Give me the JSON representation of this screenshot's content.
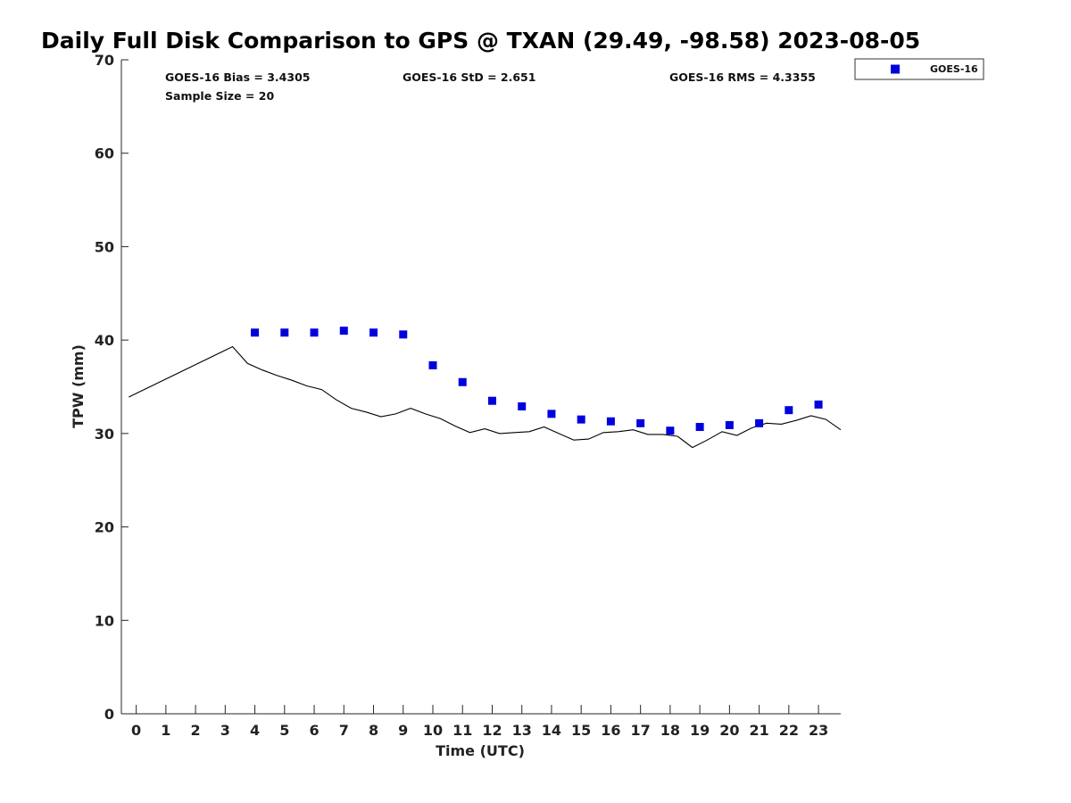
{
  "chart_data": {
    "type": "scatter",
    "title": "Daily Full Disk Comparison to GPS @ TXAN (29.49, -98.58) 2023-08-05",
    "xlabel": "Time (UTC)",
    "ylabel": "TPW (mm)",
    "xlim": [
      -0.5,
      23.75
    ],
    "ylim": [
      0,
      70
    ],
    "x_ticks": [
      0,
      1,
      2,
      3,
      4,
      5,
      6,
      7,
      8,
      9,
      10,
      11,
      12,
      13,
      14,
      15,
      16,
      17,
      18,
      19,
      20,
      21,
      22,
      23
    ],
    "x_tick_labels": [
      "0",
      "1",
      "2",
      "3",
      "4",
      "5",
      "6",
      "7",
      "8",
      "9",
      "10",
      "11",
      "12",
      "13",
      "14",
      "15",
      "16",
      "17",
      "18",
      "19",
      "20",
      "21",
      "22",
      "23"
    ],
    "y_ticks": [
      0,
      10,
      20,
      30,
      40,
      50,
      60,
      70
    ],
    "y_tick_labels": [
      "0",
      "10",
      "20",
      "30",
      "40",
      "50",
      "60",
      "70"
    ],
    "grid": false,
    "legend_position": "outside-top-right",
    "stats": {
      "bias": "GOES-16 Bias = 3.4305",
      "std": "GOES-16 StD = 2.651",
      "rms": "GOES-16 RMS = 4.3355",
      "sample_size": "Sample Size = 20"
    },
    "series": [
      {
        "name": "GOES-16",
        "kind": "markers",
        "marker": "square",
        "color": "#0000dd",
        "x": [
          4.0,
          5.0,
          6.0,
          7.0,
          8.0,
          9.0,
          10.0,
          11.0,
          12.0,
          13.0,
          14.0,
          15.0,
          16.0,
          17.0,
          18.0,
          19.0,
          20.0,
          21.0,
          22.0,
          23.0
        ],
        "y": [
          40.8,
          40.8,
          40.8,
          41.0,
          40.8,
          40.6,
          37.3,
          35.5,
          33.5,
          32.9,
          32.1,
          31.5,
          31.3,
          31.1,
          30.3,
          30.7,
          30.9,
          31.1,
          32.5,
          33.1
        ]
      },
      {
        "kind": "line",
        "color": "#000000",
        "x": [
          -0.25,
          3.25,
          3.75,
          4.25,
          4.75,
          5.25,
          5.75,
          6.25,
          6.75,
          7.25,
          7.75,
          8.25,
          8.75,
          9.25,
          9.75,
          10.25,
          10.75,
          11.25,
          11.75,
          12.25,
          12.75,
          13.25,
          13.75,
          14.25,
          14.75,
          15.25,
          15.75,
          16.25,
          16.75,
          17.25,
          17.75,
          18.25,
          18.75,
          19.25,
          19.75,
          20.25,
          20.75,
          21.25,
          21.75,
          22.25,
          22.75,
          23.25,
          23.75
        ],
        "y": [
          33.9,
          39.3,
          37.5,
          36.8,
          36.2,
          35.7,
          35.1,
          34.7,
          33.6,
          32.7,
          32.3,
          31.8,
          32.1,
          32.7,
          32.1,
          31.6,
          30.8,
          30.1,
          30.5,
          30.0,
          30.1,
          30.2,
          30.7,
          30.0,
          29.3,
          29.4,
          30.1,
          30.2,
          30.4,
          29.9,
          29.9,
          29.7,
          28.5,
          29.3,
          30.2,
          29.8,
          30.6,
          31.1,
          31.0,
          31.4,
          31.9,
          31.5,
          30.4
        ]
      }
    ]
  }
}
